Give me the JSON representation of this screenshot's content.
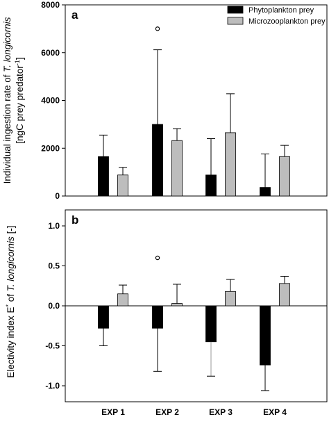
{
  "chart_data": [
    {
      "type": "bar",
      "panel_label": "a",
      "ylabel_prefix": "Individual ingestion rate of ",
      "ylabel_species": "T. longicornis",
      "ylabel_units_prefix": "[ngC prey predator",
      "ylabel_units_sup": "-1",
      "ylabel_units_suffix": "]",
      "ylim": [
        0,
        8000
      ],
      "yticks": [
        0,
        2000,
        4000,
        6000,
        8000
      ],
      "ytick_labels": [
        "0",
        "2000",
        "4000",
        "6000",
        "8000"
      ],
      "categories": [
        "EXP 1",
        "EXP 2",
        "EXP 3",
        "EXP 4"
      ],
      "series": [
        {
          "name": "Phytoplankton prey",
          "color": "#000000",
          "values": [
            1650,
            3000,
            880,
            360
          ],
          "error_upper": [
            2550,
            6120,
            2400,
            1760
          ],
          "error_lower": [
            null,
            null,
            null,
            null
          ]
        },
        {
          "name": "Microzooplankton prey",
          "color": "#bdbdbd",
          "values": [
            880,
            2320,
            2650,
            1650
          ],
          "error_upper": [
            1200,
            2820,
            4280,
            2120
          ],
          "error_lower": [
            null,
            null,
            null,
            null
          ]
        }
      ],
      "outliers": [
        {
          "category": "EXP 2",
          "series": 0,
          "value": 7000
        }
      ],
      "legend_position": "top-right"
    },
    {
      "type": "bar",
      "panel_label": "b",
      "ylabel_prefix": "Electivity index E",
      "ylabel_sup": "*",
      "ylabel_mid": " of ",
      "ylabel_species": "T. longicornis",
      "ylabel_suffix": " [-]",
      "ylim": [
        -1.2,
        1.2
      ],
      "yticks": [
        -1.0,
        -0.5,
        0.0,
        0.5,
        1.0
      ],
      "ytick_labels": [
        "-1.0",
        "-0.5",
        "0.0",
        "0.5",
        "1.0"
      ],
      "categories": [
        "EXP 1",
        "EXP 2",
        "EXP 3",
        "EXP 4"
      ],
      "series": [
        {
          "name": "Phytoplankton prey",
          "color": "#000000",
          "values": [
            -0.28,
            -0.28,
            -0.45,
            -0.74
          ],
          "error_upper": [
            null,
            null,
            null,
            null
          ],
          "error_lower": [
            -0.5,
            -0.82,
            -0.88,
            -1.06
          ]
        },
        {
          "name": "Microzooplankton prey",
          "color": "#bdbdbd",
          "values": [
            0.15,
            0.03,
            0.18,
            0.28
          ],
          "error_upper": [
            0.26,
            0.27,
            0.33,
            0.37
          ],
          "error_lower": [
            null,
            null,
            null,
            null
          ]
        }
      ],
      "outliers": [
        {
          "category": "EXP 2",
          "series": 0,
          "value": 0.6
        }
      ]
    }
  ]
}
